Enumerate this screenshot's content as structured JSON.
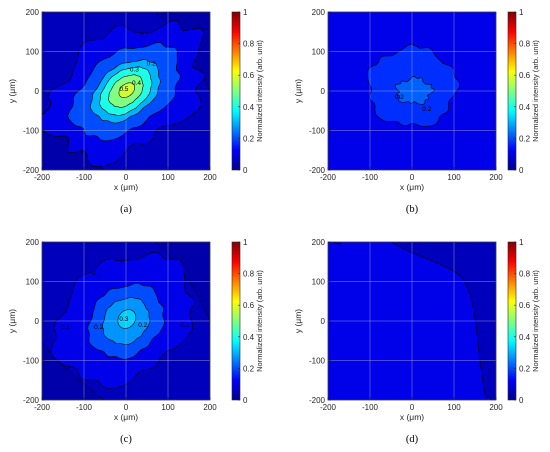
{
  "chart_data": [
    {
      "type": "heatmap",
      "panel": "(a)",
      "caption": "(a)",
      "xlabel": "x (μm)",
      "ylabel": "y (μm)",
      "colorbar_label": "Normalized intensity (arb. unit)",
      "xlim": [
        -200,
        200
      ],
      "ylim": [
        -200,
        200
      ],
      "xticks": [
        -200,
        -100,
        0,
        100,
        200
      ],
      "yticks": [
        -200,
        -100,
        0,
        100,
        200
      ],
      "clim": [
        0,
        1
      ],
      "cticks": [
        0,
        0.2,
        0.4,
        0.6,
        0.8,
        1
      ],
      "colormap": "jet",
      "grid": true,
      "peak": {
        "x": 0,
        "y": 0,
        "value": 0.6
      },
      "background_value": 0.05,
      "contour_levels": [
        0.1,
        0.2,
        0.3,
        0.4,
        0.5
      ],
      "contour_labels": [
        "0.1",
        "0.2",
        "0.3",
        "0.4",
        "0.5"
      ]
    },
    {
      "type": "heatmap",
      "panel": "(b)",
      "caption": "(b)",
      "xlabel": "x (μm)",
      "ylabel": "y (μm)",
      "colorbar_label": "Normalized intensity (arb. unit)",
      "xlim": [
        -200,
        200
      ],
      "ylim": [
        -200,
        200
      ],
      "xticks": [
        -200,
        -100,
        0,
        100,
        200
      ],
      "yticks": [
        -200,
        -100,
        0,
        100,
        200
      ],
      "clim": [
        0,
        1
      ],
      "cticks": [
        0,
        0.2,
        0.4,
        0.6,
        0.8,
        1
      ],
      "colormap": "jet",
      "grid": true,
      "peak": {
        "x": 0,
        "y": 0,
        "value": 0.22
      },
      "background_value": 0.1,
      "contour_levels": [
        0.1,
        0.2
      ],
      "contour_labels": [
        "0.2",
        "0.2"
      ]
    },
    {
      "type": "heatmap",
      "panel": "(c)",
      "caption": "(c)",
      "xlabel": "x (μm)",
      "ylabel": "y (μm)",
      "colorbar_label": "Normalized intensity (arb. unit)",
      "xlim": [
        -200,
        200
      ],
      "ylim": [
        -200,
        200
      ],
      "xticks": [
        -200,
        -100,
        0,
        100,
        200
      ],
      "yticks": [
        -200,
        -100,
        0,
        100,
        200
      ],
      "clim": [
        0,
        1
      ],
      "cticks": [
        0,
        0.2,
        0.4,
        0.6,
        0.8,
        1
      ],
      "colormap": "jet",
      "grid": true,
      "peak": {
        "x": 0,
        "y": 0,
        "value": 0.35
      },
      "background_value": 0.05,
      "contour_levels": [
        0.1,
        0.2,
        0.3
      ],
      "contour_labels": [
        "0.1",
        "0.1",
        "0.1",
        "0.2",
        "0.2",
        "0.3"
      ]
    },
    {
      "type": "heatmap",
      "panel": "(d)",
      "caption": "(d)",
      "xlabel": "x (μm)",
      "ylabel": "y (μm)",
      "colorbar_label": "Normalized intensity (arb. unit)",
      "xlim": [
        -200,
        200
      ],
      "ylim": [
        -200,
        200
      ],
      "xticks": [
        -200,
        -100,
        0,
        100,
        200
      ],
      "yticks": [
        -200,
        -100,
        0,
        100,
        200
      ],
      "clim": [
        0,
        1
      ],
      "cticks": [
        0,
        0.2,
        0.4,
        0.6,
        0.8,
        1
      ],
      "colormap": "jet",
      "grid": true,
      "background_value": 0.1,
      "contour_levels": [
        0.1
      ],
      "contour_labels": []
    }
  ],
  "colors": {
    "cmap": [
      "#00008f",
      "#0000ff",
      "#00ffff",
      "#ffff00",
      "#ff0000",
      "#800000"
    ],
    "contour_line": "#000000",
    "grid": "#d6d6d6",
    "axis": "#262626"
  }
}
